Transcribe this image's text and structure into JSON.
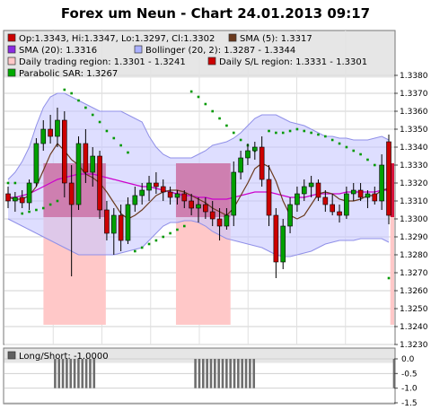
{
  "chart_data": [
    {
      "type": "candlestick",
      "title": "Forex um Neun - Chart 24.01.2013 09:17",
      "ylim": [
        1.323,
        1.339
      ],
      "y_ticks": [
        "1.3380",
        "1.3370",
        "1.3360",
        "1.3350",
        "1.3340",
        "1.3330",
        "1.3320",
        "1.3310",
        "1.3300",
        "1.3290",
        "1.3280",
        "1.3270",
        "1.3260",
        "1.3250",
        "1.3240",
        "1.3230"
      ],
      "legend": [
        {
          "label": "Op:1.3343, Hi:1.3347, Lo:1.3297, Cl:1.3302",
          "color": "#cc0000",
          "marker": "box"
        },
        {
          "label": "SMA (5): 1.3317",
          "color": "#6b3a1e",
          "marker": "box"
        },
        {
          "label": "SMA (20): 1.3316",
          "color": "#8a2be2",
          "marker": "box"
        },
        {
          "label": "Bollinger (20, 2): 1.3287 - 1.3344",
          "color": "#aab0ff",
          "marker": "box"
        },
        {
          "label": "Daily trading region: 1.3301 - 1.3241",
          "color": "#ffc8c8",
          "marker": "box"
        },
        {
          "label": "Daily S/L region: 1.3331 - 1.3301",
          "color": "#cc0000",
          "marker": "box"
        },
        {
          "label": "Parabolic SAR: 1.3267",
          "color": "#00aa00",
          "marker": "box"
        }
      ],
      "grid": true,
      "colors": {
        "up": "#00a000",
        "down": "#cc0000",
        "sma5": "#6b3a1e",
        "sma20": "#cc00cc",
        "bollinger_fill": "#c8c8ff",
        "bollinger_edge": "#9090e8",
        "trading_region": "#ffc8c8",
        "sl_region": "#d8123a",
        "sar": "#009900"
      },
      "candles": [
        {
          "o": 1.3314,
          "h": 1.3318,
          "l": 1.3306,
          "c": 1.331
        },
        {
          "o": 1.331,
          "h": 1.3315,
          "l": 1.3304,
          "c": 1.3312
        },
        {
          "o": 1.3312,
          "h": 1.3316,
          "l": 1.3306,
          "c": 1.3309
        },
        {
          "o": 1.3309,
          "h": 1.3322,
          "l": 1.3305,
          "c": 1.332
        },
        {
          "o": 1.332,
          "h": 1.3345,
          "l": 1.3318,
          "c": 1.3342
        },
        {
          "o": 1.3342,
          "h": 1.3355,
          "l": 1.3338,
          "c": 1.335
        },
        {
          "o": 1.335,
          "h": 1.3358,
          "l": 1.3342,
          "c": 1.3346
        },
        {
          "o": 1.3346,
          "h": 1.3362,
          "l": 1.334,
          "c": 1.3355
        },
        {
          "o": 1.3355,
          "h": 1.336,
          "l": 1.3312,
          "c": 1.332
        },
        {
          "o": 1.332,
          "h": 1.333,
          "l": 1.3268,
          "c": 1.3308
        },
        {
          "o": 1.3308,
          "h": 1.3346,
          "l": 1.3305,
          "c": 1.3342
        },
        {
          "o": 1.3342,
          "h": 1.335,
          "l": 1.332,
          "c": 1.3326
        },
        {
          "o": 1.3326,
          "h": 1.334,
          "l": 1.3318,
          "c": 1.3335
        },
        {
          "o": 1.3335,
          "h": 1.3338,
          "l": 1.33,
          "c": 1.3305
        },
        {
          "o": 1.3305,
          "h": 1.331,
          "l": 1.3288,
          "c": 1.3292
        },
        {
          "o": 1.3292,
          "h": 1.3306,
          "l": 1.328,
          "c": 1.3302
        },
        {
          "o": 1.3302,
          "h": 1.3308,
          "l": 1.3282,
          "c": 1.3288
        },
        {
          "o": 1.3288,
          "h": 1.3312,
          "l": 1.3286,
          "c": 1.3308
        },
        {
          "o": 1.3308,
          "h": 1.3318,
          "l": 1.3304,
          "c": 1.3313
        },
        {
          "o": 1.3313,
          "h": 1.332,
          "l": 1.3308,
          "c": 1.3316
        },
        {
          "o": 1.3316,
          "h": 1.3324,
          "l": 1.331,
          "c": 1.332
        },
        {
          "o": 1.332,
          "h": 1.3326,
          "l": 1.3314,
          "c": 1.3318
        },
        {
          "o": 1.3318,
          "h": 1.3322,
          "l": 1.331,
          "c": 1.3315
        },
        {
          "o": 1.3315,
          "h": 1.3318,
          "l": 1.3308,
          "c": 1.3312
        },
        {
          "o": 1.3312,
          "h": 1.3316,
          "l": 1.3308,
          "c": 1.3314
        },
        {
          "o": 1.3314,
          "h": 1.3316,
          "l": 1.3306,
          "c": 1.331
        },
        {
          "o": 1.331,
          "h": 1.3314,
          "l": 1.3302,
          "c": 1.3306
        },
        {
          "o": 1.3306,
          "h": 1.3312,
          "l": 1.3298,
          "c": 1.3308
        },
        {
          "o": 1.3308,
          "h": 1.3312,
          "l": 1.33,
          "c": 1.3304
        },
        {
          "o": 1.3304,
          "h": 1.331,
          "l": 1.3296,
          "c": 1.33
        },
        {
          "o": 1.33,
          "h": 1.3306,
          "l": 1.3288,
          "c": 1.3296
        },
        {
          "o": 1.3296,
          "h": 1.3306,
          "l": 1.3294,
          "c": 1.3302
        },
        {
          "o": 1.3302,
          "h": 1.3332,
          "l": 1.3296,
          "c": 1.3326
        },
        {
          "o": 1.3326,
          "h": 1.3338,
          "l": 1.3322,
          "c": 1.3334
        },
        {
          "o": 1.3334,
          "h": 1.3342,
          "l": 1.333,
          "c": 1.3338
        },
        {
          "o": 1.3338,
          "h": 1.3343,
          "l": 1.3333,
          "c": 1.334
        },
        {
          "o": 1.334,
          "h": 1.3346,
          "l": 1.3318,
          "c": 1.3322
        },
        {
          "o": 1.3322,
          "h": 1.333,
          "l": 1.3296,
          "c": 1.3302
        },
        {
          "o": 1.3302,
          "h": 1.3306,
          "l": 1.3267,
          "c": 1.3276
        },
        {
          "o": 1.3276,
          "h": 1.33,
          "l": 1.3272,
          "c": 1.3296
        },
        {
          "o": 1.3296,
          "h": 1.3312,
          "l": 1.3292,
          "c": 1.3308
        },
        {
          "o": 1.3308,
          "h": 1.3318,
          "l": 1.3304,
          "c": 1.3314
        },
        {
          "o": 1.3314,
          "h": 1.3322,
          "l": 1.331,
          "c": 1.3318
        },
        {
          "o": 1.3318,
          "h": 1.3324,
          "l": 1.3312,
          "c": 1.332
        },
        {
          "o": 1.332,
          "h": 1.3322,
          "l": 1.331,
          "c": 1.3312
        },
        {
          "o": 1.3312,
          "h": 1.3316,
          "l": 1.3304,
          "c": 1.3308
        },
        {
          "o": 1.3308,
          "h": 1.3314,
          "l": 1.3302,
          "c": 1.3304
        },
        {
          "o": 1.3304,
          "h": 1.3308,
          "l": 1.3298,
          "c": 1.3302
        },
        {
          "o": 1.3302,
          "h": 1.3318,
          "l": 1.33,
          "c": 1.3314
        },
        {
          "o": 1.3314,
          "h": 1.332,
          "l": 1.331,
          "c": 1.3316
        },
        {
          "o": 1.3316,
          "h": 1.332,
          "l": 1.331,
          "c": 1.3312
        },
        {
          "o": 1.3312,
          "h": 1.3316,
          "l": 1.3306,
          "c": 1.3314
        },
        {
          "o": 1.3314,
          "h": 1.3318,
          "l": 1.3308,
          "c": 1.331
        },
        {
          "o": 1.331,
          "h": 1.3336,
          "l": 1.3305,
          "c": 1.333
        },
        {
          "o": 1.3343,
          "h": 1.3347,
          "l": 1.3297,
          "c": 1.3302
        }
      ],
      "sma5": [
        1.3312,
        1.3311,
        1.3311,
        1.3313,
        1.3318,
        1.3327,
        1.3336,
        1.3342,
        1.3338,
        1.3333,
        1.333,
        1.3325,
        1.3323,
        1.332,
        1.3315,
        1.3309,
        1.3303,
        1.33,
        1.3302,
        1.3305,
        1.3309,
        1.3313,
        1.3315,
        1.3316,
        1.3316,
        1.3315,
        1.3313,
        1.3311,
        1.3309,
        1.3306,
        1.3304,
        1.3302,
        1.3306,
        1.3313,
        1.332,
        1.3328,
        1.3331,
        1.3329,
        1.3321,
        1.331,
        1.3302,
        1.33,
        1.3302,
        1.3308,
        1.3314,
        1.3315,
        1.3314,
        1.3311,
        1.331,
        1.331,
        1.3311,
        1.3313,
        1.3313,
        1.3316,
        1.3317
      ],
      "sma20": [
        1.3312,
        1.3312,
        1.3313,
        1.3314,
        1.3316,
        1.3318,
        1.332,
        1.3322,
        1.3323,
        1.3324,
        1.3325,
        1.3325,
        1.3325,
        1.3324,
        1.3323,
        1.3322,
        1.3321,
        1.332,
        1.3319,
        1.3318,
        1.3318,
        1.3317,
        1.3316,
        1.3315,
        1.3314,
        1.3313,
        1.3313,
        1.3312,
        1.3312,
        1.3311,
        1.3311,
        1.3311,
        1.3312,
        1.3313,
        1.3314,
        1.3315,
        1.3315,
        1.3315,
        1.3314,
        1.3313,
        1.3312,
        1.3312,
        1.3312,
        1.3313,
        1.3314,
        1.3314,
        1.3314,
        1.3314,
        1.3315,
        1.3315,
        1.3315,
        1.3315,
        1.3315,
        1.3316,
        1.3316
      ],
      "bb_upper": [
        1.3322,
        1.3326,
        1.3332,
        1.334,
        1.3352,
        1.3362,
        1.3368,
        1.337,
        1.337,
        1.3368,
        1.3366,
        1.3364,
        1.3362,
        1.336,
        1.336,
        1.336,
        1.336,
        1.3358,
        1.3356,
        1.3354,
        1.3346,
        1.334,
        1.3336,
        1.3334,
        1.3334,
        1.3334,
        1.3334,
        1.3336,
        1.3338,
        1.3341,
        1.3342,
        1.3343,
        1.3345,
        1.3348,
        1.3352,
        1.3356,
        1.3358,
        1.3358,
        1.3358,
        1.3356,
        1.3354,
        1.3353,
        1.3352,
        1.335,
        1.3348,
        1.3346,
        1.3346,
        1.3345,
        1.3345,
        1.3344,
        1.3344,
        1.3344,
        1.3345,
        1.3346,
        1.3344
      ],
      "bb_lower": [
        1.33,
        1.3298,
        1.3296,
        1.3294,
        1.3292,
        1.329,
        1.3288,
        1.3286,
        1.3284,
        1.3282,
        1.328,
        1.328,
        1.328,
        1.328,
        1.328,
        1.328,
        1.3281,
        1.3282,
        1.3283,
        1.3284,
        1.3288,
        1.3292,
        1.3296,
        1.3298,
        1.3298,
        1.3299,
        1.3299,
        1.3298,
        1.3296,
        1.3293,
        1.3291,
        1.3289,
        1.3288,
        1.3287,
        1.3286,
        1.3285,
        1.3284,
        1.3282,
        1.328,
        1.3279,
        1.3279,
        1.328,
        1.3281,
        1.3282,
        1.3284,
        1.3286,
        1.3287,
        1.3288,
        1.3288,
        1.3288,
        1.3289,
        1.3289,
        1.3289,
        1.3289,
        1.3287
      ],
      "sar": [
        1.332,
        1.332,
        1.3303,
        1.3304,
        1.3305,
        1.3306,
        1.3308,
        1.331,
        1.3372,
        1.337,
        1.3366,
        1.3362,
        1.3358,
        1.3354,
        1.3349,
        1.3345,
        1.3341,
        1.3337,
        1.3282,
        1.3284,
        1.3286,
        1.3288,
        1.329,
        1.3292,
        1.3294,
        1.3296,
        1.3371,
        1.3368,
        1.3364,
        1.336,
        1.3356,
        1.3352,
        1.3348,
        1.3344,
        1.3341,
        1.3338,
        1.3335,
        1.3349,
        1.3348,
        1.3348,
        1.3349,
        1.335,
        1.3349,
        1.3348,
        1.3347,
        1.3346,
        1.3344,
        1.3342,
        1.334,
        1.3338,
        1.3336,
        1.3333,
        1.333,
        1.3328,
        1.3267
      ],
      "trading_regions": [
        {
          "from": 10,
          "to": 26,
          "high": 1.3301,
          "low": 1.3241
        },
        {
          "from": 44,
          "to": 58,
          "high": 1.3301,
          "low": 1.3241
        },
        {
          "from": 99,
          "to": 100,
          "high": 1.3301,
          "low": 1.3241
        }
      ],
      "sl_regions": [
        {
          "from": 10,
          "to": 26,
          "high": 1.3331,
          "low": 1.3301
        },
        {
          "from": 44,
          "to": 58,
          "high": 1.3331,
          "low": 1.3301
        },
        {
          "from": 99,
          "to": 100,
          "high": 1.3331,
          "low": 1.3301
        }
      ]
    },
    {
      "type": "bar",
      "legend": [
        {
          "label": "Long/Short: -1.0000",
          "color": "#606060",
          "marker": "box"
        }
      ],
      "ylim": [
        -1.5,
        0.0
      ],
      "y_ticks": [
        "0.0",
        "-0.5",
        "-1.0",
        "-1.5"
      ],
      "color": "#6e6e6e",
      "bar_indices": [
        12,
        13,
        14,
        15,
        16,
        17,
        18,
        19,
        20,
        21,
        22,
        48,
        49,
        50,
        51,
        52,
        53,
        54,
        55,
        56,
        57,
        58,
        59,
        60,
        61,
        62,
        63,
        99
      ],
      "value": -1.0
    }
  ]
}
